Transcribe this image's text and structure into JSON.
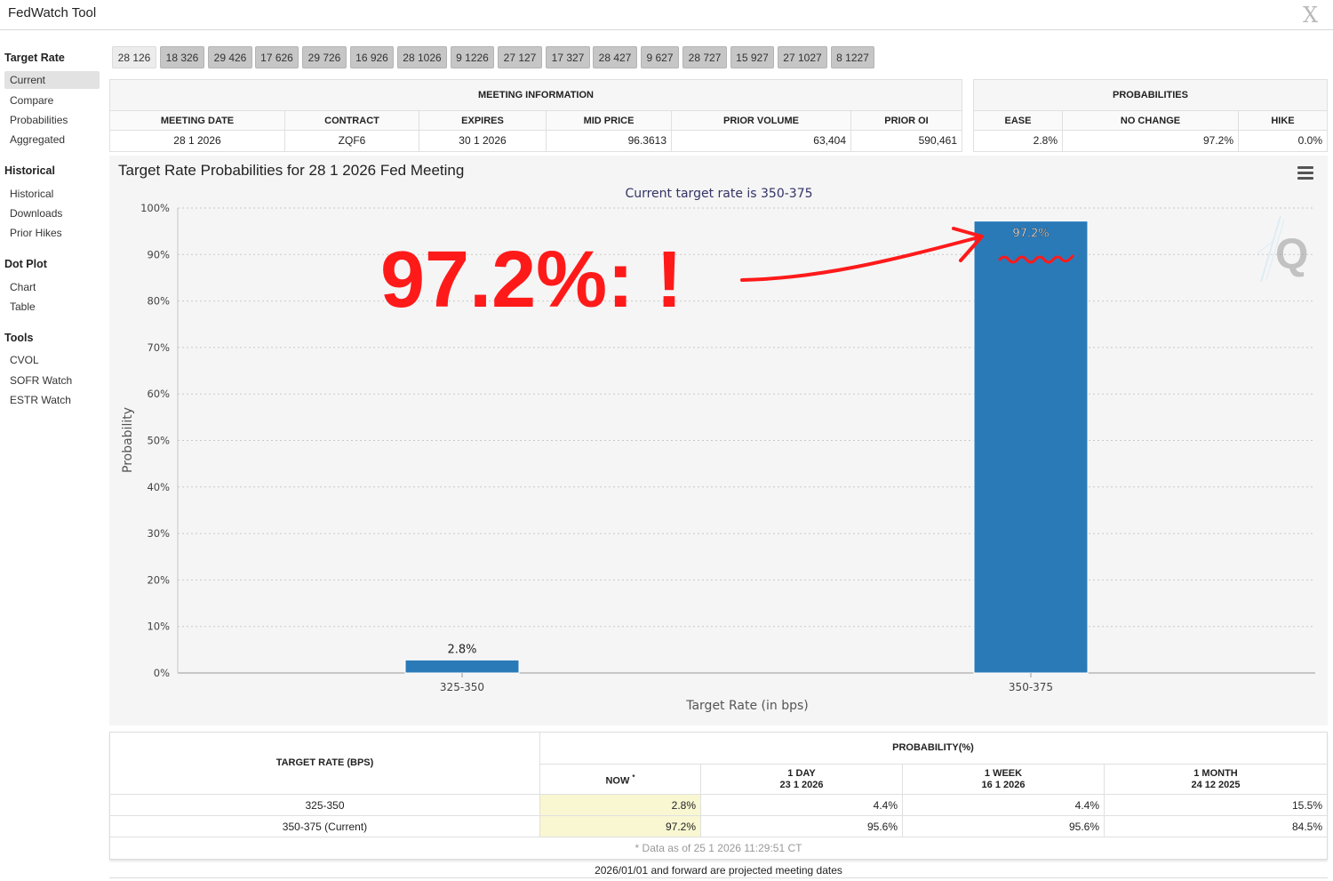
{
  "app": {
    "title": "FedWatch Tool",
    "close_label": "X"
  },
  "sidebar": {
    "sections": [
      {
        "heading": "Target Rate",
        "items": [
          "Current",
          "Compare",
          "Probabilities",
          "Aggregated"
        ]
      },
      {
        "heading": "Historical",
        "items": [
          "Historical",
          "Downloads",
          "Prior Hikes"
        ]
      },
      {
        "heading": "Dot Plot",
        "items": [
          "Chart",
          "Table"
        ]
      },
      {
        "heading": "Tools",
        "items": [
          "CVOL",
          "SOFR Watch",
          "ESTR Watch"
        ]
      }
    ],
    "active_item": "Current"
  },
  "meeting_tabs": [
    "28 126",
    "18 326",
    "29 426",
    "17 626",
    "29 726",
    "16 926",
    "28 1026",
    "9 1226",
    "27 127",
    "17 327",
    "28 427",
    "9 627",
    "28 727",
    "15 927",
    "27 1027",
    "8 1227"
  ],
  "active_tab": "28 126",
  "meeting_info": {
    "caption": "MEETING INFORMATION",
    "headers": [
      "MEETING DATE",
      "CONTRACT",
      "EXPIRES",
      "MID PRICE",
      "PRIOR VOLUME",
      "PRIOR OI"
    ],
    "values": [
      "28 1 2026",
      "ZQF6",
      "30 1 2026",
      "96.3613",
      "63,404",
      "590,461"
    ]
  },
  "probabilities": {
    "caption": "PROBABILITIES",
    "headers": [
      "EASE",
      "NO CHANGE",
      "HIKE"
    ],
    "values": [
      "2.8%",
      "97.2%",
      "0.0%"
    ]
  },
  "chart": {
    "title": "Target Rate Probabilities for 28 1 2026 Fed Meeting",
    "annotation_text": "97.2%: !"
  },
  "chart_data": {
    "type": "bar",
    "title": "Target Rate Probabilities for 28 1 2026 Fed Meeting",
    "subtitle": "Current target rate is 350-375",
    "categories": [
      "325-350",
      "350-375"
    ],
    "values": [
      2.8,
      97.2
    ],
    "data_labels": [
      "2.8%",
      "97.2%"
    ],
    "xlabel": "Target Rate (in bps)",
    "ylabel": "Probability",
    "ylim": [
      0,
      100
    ],
    "yticks": [
      "0%",
      "10%",
      "20%",
      "30%",
      "40%",
      "50%",
      "60%",
      "70%",
      "80%",
      "90%",
      "100%"
    ],
    "grid": true,
    "bar_color": "#2a7ab8",
    "annotation_color": "#ff1a1a"
  },
  "prob_table": {
    "rate_header": "TARGET RATE (BPS)",
    "prob_header": "PROBABILITY(%)",
    "columns": [
      {
        "label": "NOW",
        "mark": "*",
        "date": ""
      },
      {
        "label": "1 DAY",
        "date": "23 1 2026"
      },
      {
        "label": "1 WEEK",
        "date": "16 1 2026"
      },
      {
        "label": "1 MONTH",
        "date": "24 12 2025"
      }
    ],
    "rows": [
      {
        "rate": "325-350",
        "values": [
          "2.8%",
          "4.4%",
          "4.4%",
          "15.5%"
        ]
      },
      {
        "rate": "350-375 (Current)",
        "values": [
          "97.2%",
          "95.6%",
          "95.6%",
          "84.5%"
        ]
      }
    ],
    "data_note": "* Data as of 25 1 2026 11:29:51 CT"
  },
  "footer_note": "2026/01/01 and forward are projected meeting dates",
  "colors": {
    "highlight": "#f8f7d2",
    "button": "#c6c6c6"
  }
}
